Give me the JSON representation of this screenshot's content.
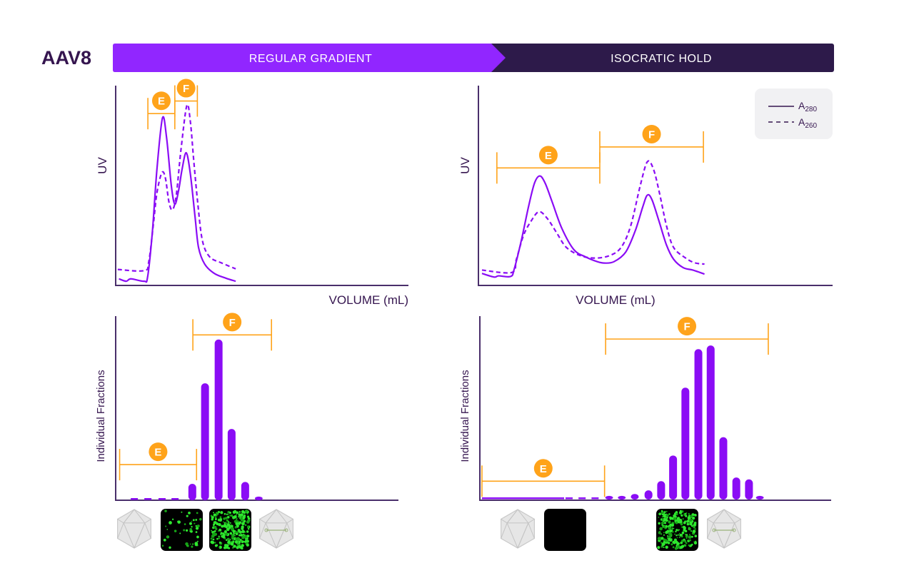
{
  "title": "AAV8",
  "header": {
    "phase_1": "REGULAR GRADIENT",
    "phase_2": "ISOCRATIC HOLD"
  },
  "colors": {
    "gradient_bar": "#9126ff",
    "hold_bar": "#2d1a4a",
    "trace": "#8a0cf5",
    "bracket": "#ffa31a",
    "axis": "#4a2f6b",
    "title": "#35154f"
  },
  "legend": {
    "items": [
      {
        "label": "A",
        "sub": "280",
        "style": "solid"
      },
      {
        "label": "A",
        "sub": "260",
        "style": "dashed"
      }
    ],
    "placement": "top-right"
  },
  "images": {
    "left": [
      "empty-capsid-icon",
      "sparse-fluorescence-image",
      "dense-fluorescence-image",
      "full-capsid-icon"
    ],
    "right": [
      "empty-capsid-icon",
      "dark-fluorescence-image",
      "dense-fluorescence-image",
      "full-capsid-icon"
    ]
  },
  "chart_data": [
    {
      "type": "line",
      "panel": "regular-gradient-uv",
      "xlabel": "VOLUME (mL)",
      "ylabel": "UV",
      "xlim": [
        0,
        100
      ],
      "ylim": [
        0,
        100
      ],
      "series": [
        {
          "name": "A280",
          "style": "solid",
          "points": [
            [
              1.1,
              3.3
            ],
            [
              3.6,
              2.1
            ],
            [
              5.2,
              3.3
            ],
            [
              9.7,
              2.1
            ],
            [
              10.9,
              4.2
            ],
            [
              12.5,
              26.2
            ],
            [
              14.1,
              58.3
            ],
            [
              16.0,
              83.9
            ],
            [
              17.4,
              73.8
            ],
            [
              19.0,
              50
            ],
            [
              20.2,
              40.7
            ],
            [
              21.5,
              47.6
            ],
            [
              22.7,
              58.3
            ],
            [
              24.1,
              66.4
            ],
            [
              25.5,
              55.9
            ],
            [
              27.1,
              34.5
            ],
            [
              28.3,
              19
            ],
            [
              30.4,
              10.7
            ],
            [
              33.7,
              6
            ],
            [
              37.7,
              3.6
            ],
            [
              41,
              2.1
            ]
          ]
        },
        {
          "name": "A260",
          "style": "dashed",
          "points": [
            [
              0.7,
              8
            ],
            [
              9.7,
              7.4
            ],
            [
              11.3,
              11.9
            ],
            [
              12.9,
              30.9
            ],
            [
              14.1,
              46.4
            ],
            [
              15.8,
              56.5
            ],
            [
              17,
              53.6
            ],
            [
              18.2,
              41.7
            ],
            [
              19.4,
              37.9
            ],
            [
              20.7,
              45.2
            ],
            [
              22.3,
              67.9
            ],
            [
              24.3,
              90
            ],
            [
              25.5,
              82.1
            ],
            [
              26.7,
              61.9
            ],
            [
              28,
              41.7
            ],
            [
              29.6,
              22.6
            ],
            [
              32.1,
              14.3
            ],
            [
              36.1,
              11.3
            ],
            [
              41,
              8.3
            ]
          ]
        }
      ],
      "annotations": [
        {
          "label": "E",
          "x_range": [
            11.0,
            20.2
          ],
          "y": 86
        },
        {
          "label": "F",
          "x_range": [
            20.2,
            27.9
          ],
          "y": 92.3
        }
      ]
    },
    {
      "type": "line",
      "panel": "isocratic-hold-uv",
      "xlabel": "VOLUME (mL)",
      "ylabel": "UV",
      "xlim": [
        0,
        100
      ],
      "ylim": [
        0,
        100
      ],
      "series": [
        {
          "name": "A280",
          "style": "solid",
          "points": [
            [
              1,
              6
            ],
            [
              4.4,
              4.2
            ],
            [
              5.7,
              4.8
            ],
            [
              9.1,
              4.5
            ],
            [
              10.1,
              8.3
            ],
            [
              12.1,
              22.6
            ],
            [
              14.1,
              39.3
            ],
            [
              15.8,
              51.2
            ],
            [
              17.3,
              54.8
            ],
            [
              18.8,
              51.2
            ],
            [
              20.8,
              41.7
            ],
            [
              23.5,
              28.6
            ],
            [
              26.9,
              17.9
            ],
            [
              30.2,
              14.3
            ],
            [
              33.5,
              11.9
            ],
            [
              35.5,
              11.2
            ],
            [
              38.2,
              11.9
            ],
            [
              41.5,
              16.7
            ],
            [
              44.2,
              27.4
            ],
            [
              46.3,
              39.3
            ],
            [
              47.6,
              45.2
            ],
            [
              48.9,
              42.9
            ],
            [
              50.9,
              32.1
            ],
            [
              53,
              20.2
            ],
            [
              55,
              13.1
            ],
            [
              57.7,
              8.9
            ],
            [
              60.4,
              7.7
            ],
            [
              63.7,
              5.7
            ]
          ]
        },
        {
          "name": "A260",
          "style": "dashed",
          "points": [
            [
              1,
              7.7
            ],
            [
              9.4,
              6.5
            ],
            [
              10.7,
              13.1
            ],
            [
              12.7,
              25
            ],
            [
              14.8,
              32.1
            ],
            [
              17.1,
              36.9
            ],
            [
              19.5,
              33.3
            ],
            [
              22.1,
              26.2
            ],
            [
              24.8,
              19
            ],
            [
              28.8,
              14.9
            ],
            [
              32.9,
              13.7
            ],
            [
              36.9,
              14.9
            ],
            [
              40.2,
              19
            ],
            [
              42.9,
              29.8
            ],
            [
              45.6,
              50
            ],
            [
              47.6,
              61.9
            ],
            [
              49.3,
              58.3
            ],
            [
              51,
              46.4
            ],
            [
              53,
              29.8
            ],
            [
              55,
              19
            ],
            [
              58.4,
              13.7
            ],
            [
              61,
              11.3
            ],
            [
              63.7,
              10.7
            ]
          ]
        }
      ],
      "annotations": [
        {
          "label": "E",
          "x_range": [
            5.2,
            34.2
          ],
          "y": 58.8
        },
        {
          "label": "F",
          "x_range": [
            34.2,
            63.4
          ],
          "y": 69.3
        }
      ]
    },
    {
      "type": "bar",
      "panel": "regular-gradient-fractions",
      "ylabel": "Individual Fractions",
      "xlim": [
        0,
        100
      ],
      "ylim": [
        0,
        100
      ],
      "trace_x": [
        6.6,
        11.4,
        16.4,
        21.0
      ],
      "bars": [
        {
          "x": 27.1,
          "value": 9
        },
        {
          "x": 31.6,
          "value": 64
        },
        {
          "x": 36.4,
          "value": 88
        },
        {
          "x": 41.0,
          "value": 39
        },
        {
          "x": 45.8,
          "value": 10
        },
        {
          "x": 50.6,
          "value": 2
        }
      ],
      "annotations": [
        {
          "label": "E",
          "x_range": [
            1.4,
            28.6
          ],
          "y": 19.5
        },
        {
          "label": "F",
          "x_range": [
            27.3,
            55.1
          ],
          "y": 90.5
        }
      ]
    },
    {
      "type": "bar",
      "panel": "isocratic-hold-fractions",
      "ylabel": "Individual Fractions",
      "xlim": [
        0,
        100
      ],
      "ylim": [
        0,
        100
      ],
      "trace_x": [
        25.4,
        29.1,
        32.8
      ],
      "bars": [
        {
          "x": 36.8,
          "value": 2
        },
        {
          "x": 40.4,
          "value": 2
        },
        {
          "x": 44.1,
          "value": 3
        },
        {
          "x": 48.0,
          "value": 5
        },
        {
          "x": 51.6,
          "value": 10
        },
        {
          "x": 55.0,
          "value": 24
        },
        {
          "x": 58.5,
          "value": 61
        },
        {
          "x": 62.2,
          "value": 82
        },
        {
          "x": 65.7,
          "value": 84
        },
        {
          "x": 69.3,
          "value": 34
        },
        {
          "x": 73.0,
          "value": 12
        },
        {
          "x": 76.6,
          "value": 11
        },
        {
          "x": 79.7,
          "value": 2
        }
      ],
      "annotations": [
        {
          "label": "E",
          "x_range": [
            0.6,
            35.5
          ],
          "y": 10
        },
        {
          "label": "F",
          "x_range": [
            35.8,
            82.1
          ],
          "y": 87.5
        }
      ]
    }
  ]
}
